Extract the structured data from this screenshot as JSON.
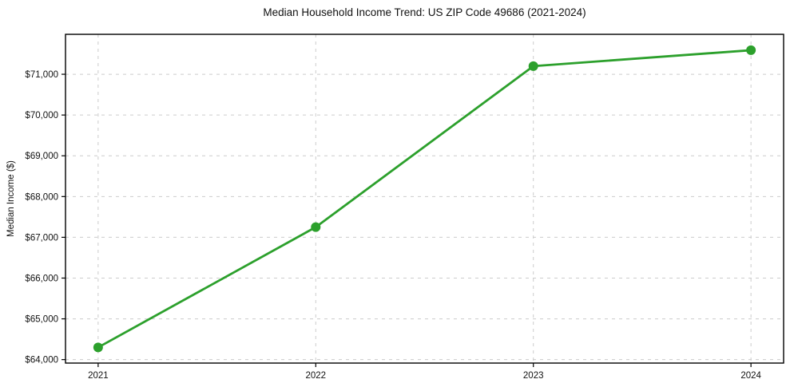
{
  "chart_data": {
    "type": "line",
    "title": "Median Household Income Trend: US ZIP Code 49686 (2021-2024)",
    "xlabel": "",
    "ylabel": "Median Income ($)",
    "x": [
      2021,
      2022,
      2023,
      2024
    ],
    "categories": [
      "2021",
      "2022",
      "2023",
      "2024"
    ],
    "series": [
      {
        "name": "Median Income",
        "values": [
          64300,
          67250,
          71200,
          71590
        ]
      }
    ],
    "yticks": [
      64000,
      65000,
      66000,
      67000,
      68000,
      69000,
      70000,
      71000
    ],
    "ytick_labels": [
      "$64,000",
      "$65,000",
      "$66,000",
      "$67,000",
      "$68,000",
      "$69,000",
      "$70,000",
      "$71,000"
    ],
    "xlim": [
      2020.85,
      2024.15
    ],
    "ylim": [
      63915,
      71980
    ],
    "grid": true,
    "legend": "none",
    "line_color": "#2ca02c",
    "grid_color": "#cccccc",
    "axis_color": "#000000",
    "text_color": "#111111",
    "background": "#ffffff",
    "marker": "circle"
  }
}
